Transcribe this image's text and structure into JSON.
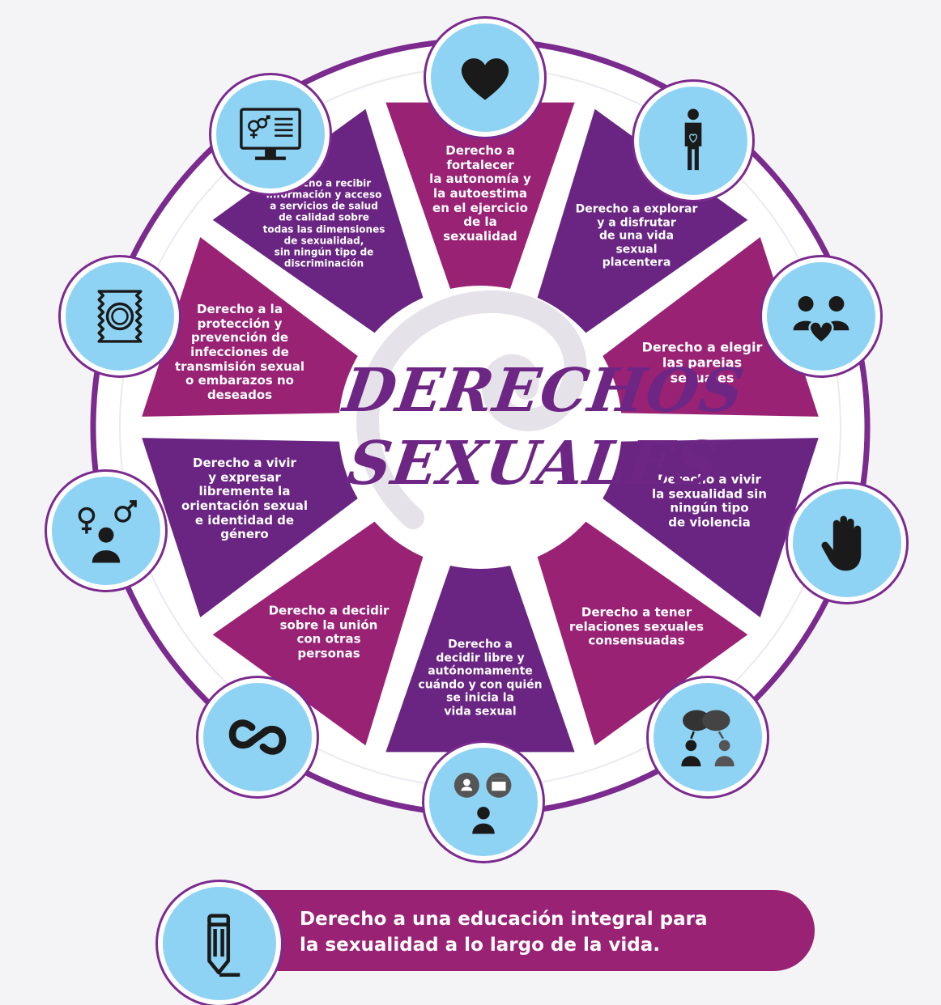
{
  "title": {
    "line1": "DERECHOS",
    "line2": "SEXUALES"
  },
  "colors": {
    "purple": "#6a2583",
    "magenta": "#9a2275",
    "ring": "#7b2a8e",
    "badge": "#8fd3f4",
    "icon": "#1a1a1a"
  },
  "segments": [
    {
      "text": "Derecho a\nfortalecer\nla autonomía y\nla autoestima\nen el ejercicio\nde la\nsexualidad",
      "icon": "heart-icon"
    },
    {
      "text": "Derecho a explorar\ny a disfrutar\nde una vida\nsexual\nplacentera",
      "icon": "person-heart-icon"
    },
    {
      "text": "Derecho a elegir\nlas parejas\nsexuales",
      "icon": "couple-heart-icon"
    },
    {
      "text": "Derecho a vivir\nla sexualidad sin\nningún tipo\nde violencia",
      "icon": "stop-hand-icon"
    },
    {
      "text": "Derecho a tener\nrelaciones sexuales\nconsensuadas",
      "icon": "conversation-icon"
    },
    {
      "text": "Derecho a\ndecidir libre y\nautónomamente\ncuándo y con quién\nse inicia la\nvida sexual",
      "icon": "decision-calendar-icon"
    },
    {
      "text": "Derecho a decidir\nsobre la unión\ncon otras\npersonas",
      "icon": "linked-rings-icon"
    },
    {
      "text": "Derecho a vivir\ny expresar\nlibremente la\norientación sexual\ne identidad de\ngénero",
      "icon": "gender-person-icon"
    },
    {
      "text": "Derecho a la\nprotección y\nprevención de\ninfecciones de\ntransmisión sexual\no embarazos no\ndeseados",
      "icon": "condom-icon"
    },
    {
      "text": "Derecho a recibir\ninformación y acceso\na servicios de salud\nde calidad sobre\ntodas las dimensiones\nde sexualidad,\nsin ningún tipo de\ndiscriminación",
      "icon": "gender-monitor-icon"
    }
  ],
  "bottom": {
    "text": "Derecho a una educación integral para\nla sexualidad a lo largo de la vida.",
    "icon": "pencil-icon"
  }
}
